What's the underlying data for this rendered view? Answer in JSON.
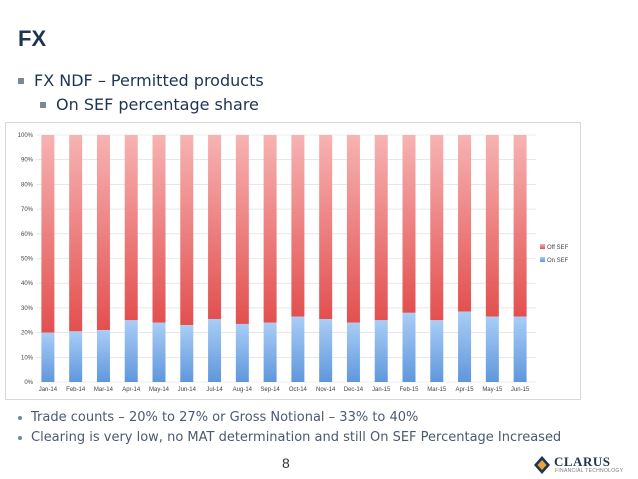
{
  "slide": {
    "title": "FX",
    "bullet_1": "FX NDF – Permitted products",
    "bullet_2": "On SEF percentage share",
    "notes": [
      "Trade counts – 20% to 27%  or Gross Notional – 33% to 40%",
      "Clearing is very low, no MAT determination and still On SEF Percentage Increased"
    ],
    "page_number": "8",
    "logo": {
      "name": "CLARUS",
      "tagline": "FINANCIAL TECHNOLOGY"
    }
  },
  "chart_data": {
    "type": "bar",
    "stacked": true,
    "percent": true,
    "categories": [
      "Jan-14",
      "Feb-14",
      "Mar-14",
      "Apr-14",
      "May-14",
      "Jun-14",
      "Jul-14",
      "Aug-14",
      "Sep-14",
      "Oct-14",
      "Nov-14",
      "Dec-14",
      "Jan-15",
      "Feb-15",
      "Mar-15",
      "Apr-15",
      "May-15",
      "Jun-15"
    ],
    "series": [
      {
        "name": "On SEF",
        "color": "#6fa6e8",
        "values": [
          20,
          20.5,
          21,
          25,
          24,
          23,
          25.5,
          23.5,
          24,
          26.5,
          25.5,
          24,
          25,
          28,
          25,
          28.5,
          26.5,
          26.5
        ]
      },
      {
        "name": "Off SEF",
        "color": "#ef6e6e",
        "values": [
          80,
          79.5,
          79,
          75,
          76,
          77,
          74.5,
          76.5,
          76,
          73.5,
          74.5,
          76,
          75,
          72,
          75,
          71.5,
          73.5,
          73.5
        ]
      }
    ],
    "ylim": [
      0,
      100
    ],
    "yticks": [
      "0%",
      "10%",
      "20%",
      "30%",
      "40%",
      "50%",
      "60%",
      "70%",
      "80%",
      "90%",
      "100%"
    ],
    "legend": {
      "placement": "right",
      "entries": [
        "Off SEF",
        "On SEF"
      ]
    },
    "grid": true
  }
}
